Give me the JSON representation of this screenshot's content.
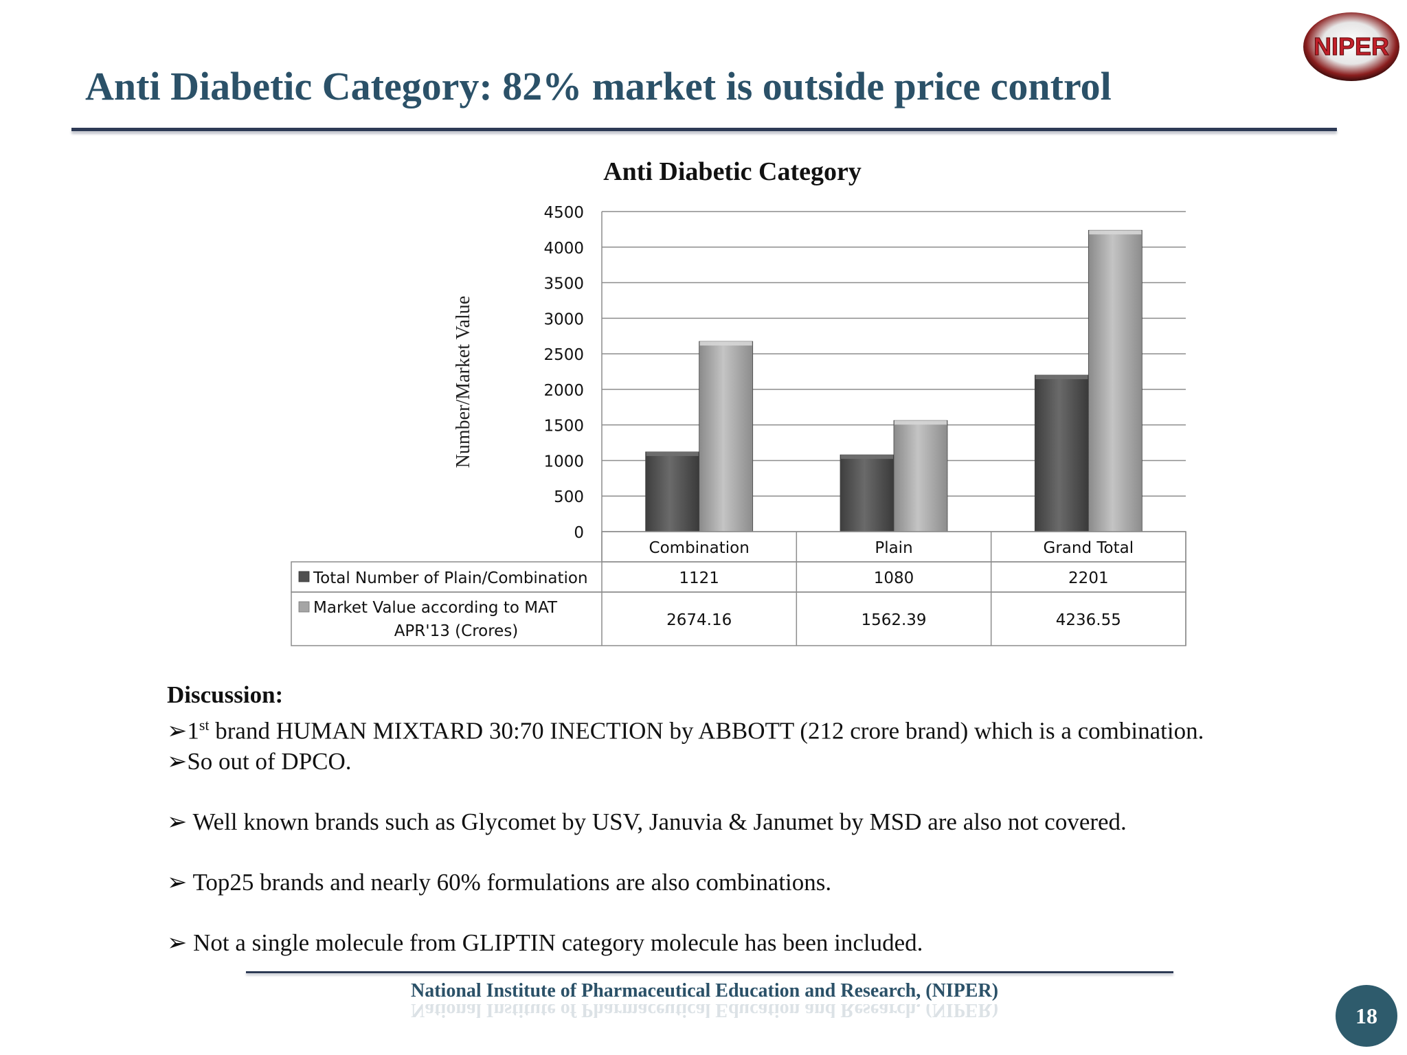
{
  "slide": {
    "title": "Anti Diabetic Category: 82% market  is outside price control",
    "logo_text": "NIPER",
    "footer": "National Institute of Pharmaceutical Education and Research, (NIPER)",
    "page_number": "18"
  },
  "discussion": {
    "heading": "Discussion:",
    "bullet_marker": "➢",
    "items": [
      {
        "pre": "1",
        "sup": "st",
        "text": " brand HUMAN MIXTARD 30:70 INECTION by ABBOTT (212 crore brand) which is a combination."
      },
      {
        "text": "So out of DPCO."
      },
      {
        "text": " Well known brands such as Glycomet by USV, Januvia & Janumet by MSD are also not covered."
      },
      {
        "text": " Top25 brands and nearly 60% formulations are  also combinations."
      },
      {
        "text": " Not a single molecule from GLIPTIN category molecule has been included."
      }
    ]
  },
  "colors": {
    "title": "#2b5168",
    "series_dark": "#585858",
    "series_light": "#a9a9a9",
    "page_badge": "#2e5b6c"
  },
  "chart_data": {
    "type": "bar",
    "title": "Anti Diabetic Category",
    "ylabel": "Number/Market Value",
    "xlabel": "",
    "ylim": [
      0,
      4500
    ],
    "yticks": [
      0,
      500,
      1000,
      1500,
      2000,
      2500,
      3000,
      3500,
      4000,
      4500
    ],
    "grid": true,
    "legend": "data-table",
    "categories": [
      "Combination",
      "Plain",
      "Grand Total"
    ],
    "series": [
      {
        "name": "Total Number of Plain/Combination",
        "values": [
          1121,
          1080,
          2201
        ],
        "labels": [
          "1121",
          "1080",
          "2201"
        ]
      },
      {
        "name": "Market Value according to MAT APR'13  (Crores)",
        "name_lines": [
          "Market Value according to MAT",
          "APR'13  (Crores)"
        ],
        "values": [
          2674.16,
          1562.39,
          4236.55
        ],
        "labels": [
          "2674.16",
          "1562.39",
          "4236.55"
        ]
      }
    ]
  }
}
